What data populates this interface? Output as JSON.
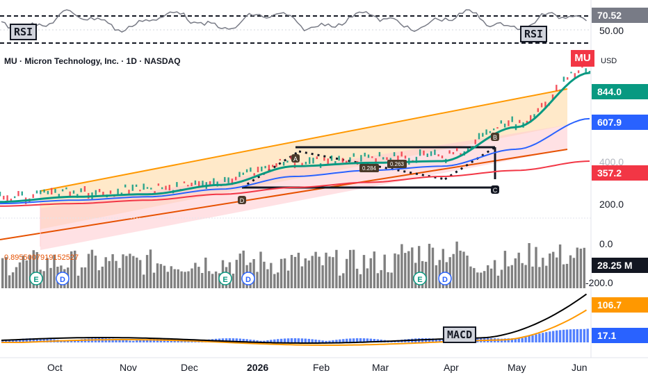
{
  "header": {
    "title": "MU · Micron Technology, Inc. · 1D · NASDAQ",
    "symbol_badge": "MU",
    "currency": "USD"
  },
  "price_tags": [
    {
      "label": "844.0",
      "color": "#089981"
    },
    {
      "label": "607.9",
      "color": "#2962ff"
    },
    {
      "label": "357.2",
      "color": "#f23645"
    }
  ],
  "price_axis": [
    "400.0",
    "200.0",
    "0.0",
    "-200.0"
  ],
  "rsi_panel": {
    "label": "RSI",
    "value_tag": "70.52",
    "axis_label": "50.00"
  },
  "volume": {
    "value_tag": "28.25 M",
    "fib_label": "0.8955007919152527"
  },
  "macd_panel": {
    "label": "MACD",
    "macd_tag": "106.7",
    "signal_tag": "17.1"
  },
  "pattern_labels": [
    "A",
    "B",
    "C",
    "D"
  ],
  "pattern_values": [
    "0.284",
    "0.263"
  ],
  "event_markers": [
    "E",
    "D",
    "E",
    "D",
    "E",
    "D"
  ],
  "x_axis": [
    "Oct",
    "Nov",
    "Dec",
    "2026",
    "Feb",
    "Mar",
    "Apr",
    "May",
    "Jun"
  ],
  "colors": {
    "ema_fast": "#089981",
    "ema_mid": "#2962ff",
    "ema_slow": "#f23645",
    "channel": "#ff9800",
    "macd": "#000000",
    "signal": "#ff9800",
    "hist": "#2962ff"
  },
  "chart_data": {
    "type": "line",
    "title": "MU · Micron Technology, Inc. · 1D · NASDAQ",
    "x": [
      "Oct",
      "Nov",
      "Dec",
      "2026",
      "Feb",
      "Mar",
      "Apr",
      "May",
      "Jun"
    ],
    "series": [
      {
        "values": [
          120,
          150,
          165,
          220,
          330,
          350,
          360,
          560,
          880
        ]
      },
      {
        "values": [
          110,
          130,
          150,
          195,
          270,
          305,
          330,
          430,
          610
        ]
      },
      {
        "values": [
          95,
          110,
          130,
          165,
          205,
          235,
          270,
          305,
          360
        ]
      }
    ],
    "ylim": [
      -200,
      900
    ],
    "grid": false,
    "legend": "none"
  }
}
